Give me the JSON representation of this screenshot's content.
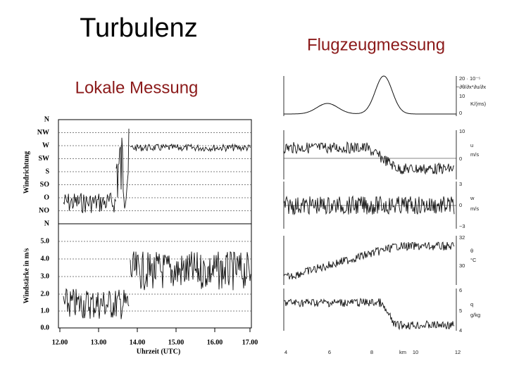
{
  "header": {
    "title": "Turbulenz",
    "subtitle_left": "Lokale Messung",
    "subtitle_right": "Flugzeugmessung"
  },
  "left_figure": {
    "direction_labels": [
      "N",
      "NW",
      "W",
      "SW",
      "S",
      "SO",
      "O",
      "NO",
      "N"
    ],
    "speed_labels": [
      "5.0",
      "4.0",
      "3.0",
      "2.0",
      "1.0",
      "0.0"
    ],
    "x_labels": [
      "12.00",
      "13.00",
      "14.00",
      "15.00",
      "16.00",
      "17.00"
    ],
    "x_axis_title": "Uhrzeit (UTC)",
    "y_axis_titles": [
      "Windrichtung",
      "Windstärke in m/s"
    ]
  },
  "right_figure": {
    "panels": [
      {
        "labels": [
          "20 · 10⁻⁵",
          "−∂θ/∂x*∂u/∂x",
          "10",
          "K/(ms)",
          "0"
        ]
      },
      {
        "labels": [
          "10",
          "u",
          "m/s",
          "0"
        ]
      },
      {
        "labels": [
          "3",
          "w",
          "0",
          "m/s",
          "−3"
        ]
      },
      {
        "labels": [
          "32",
          "θ",
          "°C",
          "30"
        ]
      },
      {
        "labels": [
          "6",
          "q",
          "5",
          "g/kg",
          "4"
        ]
      }
    ],
    "x_labels": [
      "4",
      "6",
      "8",
      "km",
      "10",
      "12"
    ]
  }
}
